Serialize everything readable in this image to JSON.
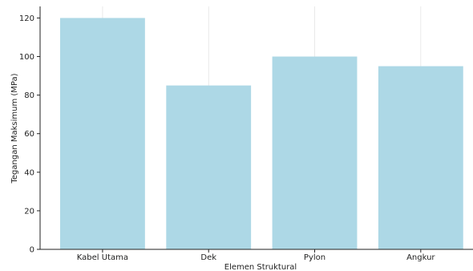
{
  "chart_data": {
    "type": "bar",
    "title": "",
    "xlabel": "Elemen Struktural",
    "ylabel": "Tegangan Maksimum (MPa)",
    "categories": [
      "Kabel Utama",
      "Dek",
      "Pylon",
      "Angkur"
    ],
    "values": [
      120,
      85,
      100,
      95
    ],
    "ylim": [
      0,
      126
    ],
    "yticks": [
      "0",
      "20",
      "40",
      "60",
      "80",
      "100",
      "120"
    ],
    "grid": "vertical",
    "bar_color": "#add8e6",
    "legend": "none"
  }
}
